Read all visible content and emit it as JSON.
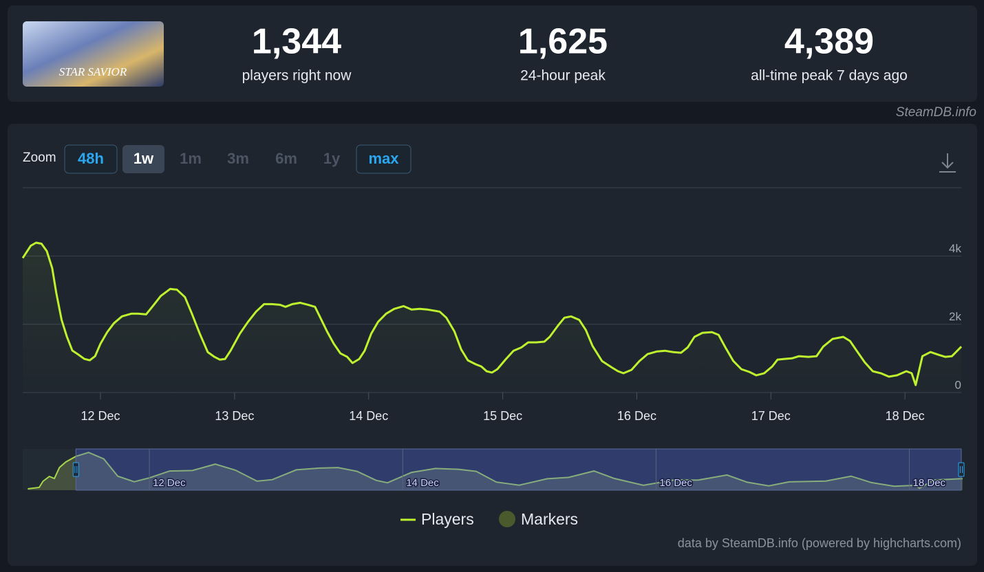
{
  "header": {
    "image_label": "STAR SAVIOR",
    "source": "SteamDB.info",
    "stats": [
      {
        "value": "1,344",
        "label": "players right now"
      },
      {
        "value": "1,625",
        "label": "24-hour peak"
      },
      {
        "value": "4,389",
        "label": "all-time peak 7 days ago"
      }
    ]
  },
  "zoom": {
    "label": "Zoom",
    "buttons": [
      "48h",
      "1w",
      "1m",
      "3m",
      "6m",
      "1y",
      "max"
    ]
  },
  "chart_data": [
    {
      "type": "line",
      "grid": true,
      "legend": "bottom",
      "series": [
        {
          "name": "Players",
          "color": "#bef22e",
          "values": [
            3940,
            4300,
            4389,
            4360,
            4140,
            3640,
            2930,
            2130,
            1630,
            1230,
            1100,
            985,
            945,
            1065,
            1430,
            1770,
            2030,
            2230,
            2310,
            2310,
            2290,
            2530,
            2830,
            3035,
            3015,
            2795,
            2330,
            1730,
            1185,
            1045,
            965,
            985,
            1225,
            1730,
            2070,
            2370,
            2590,
            2590,
            2570,
            2510,
            2590,
            2630,
            2570,
            2510,
            2190,
            1790,
            1430,
            1145,
            1045,
            865,
            985,
            1225,
            1730,
            2070,
            2310,
            2450,
            2530,
            2430,
            2450,
            2430,
            2370,
            2190,
            1790,
            1265,
            945,
            825,
            765,
            625,
            585,
            685,
            965,
            1225,
            1325,
            1470,
            1470,
            1490,
            1630,
            1950,
            2190,
            2230,
            2130,
            1830,
            1365,
            925,
            745,
            625,
            565,
            665,
            925,
            1125,
            1205,
            1225,
            1185,
            1165,
            1325,
            1630,
            1750,
            1770,
            1690,
            1325,
            925,
            685,
            605,
            505,
            565,
            765,
            965,
            985,
            1005,
            1065,
            1045,
            1065,
            1345,
            1570,
            1630,
            1510,
            1225,
            885,
            625,
            565,
            465,
            505,
            625,
            565,
            220,
            1065,
            1185,
            1105,
            1045,
            1065,
            1344
          ]
        }
      ],
      "x": [
        11.42,
        11.48,
        11.52,
        11.56,
        11.6,
        11.64,
        11.67,
        11.71,
        11.75,
        11.79,
        11.84,
        11.88,
        11.92,
        11.96,
        12.0,
        12.05,
        12.1,
        12.16,
        12.23,
        12.28,
        12.34,
        12.39,
        12.45,
        12.52,
        12.57,
        12.63,
        12.68,
        12.74,
        12.8,
        12.85,
        12.89,
        12.93,
        12.97,
        13.04,
        13.1,
        13.16,
        13.22,
        13.28,
        13.34,
        13.38,
        13.43,
        13.49,
        13.55,
        13.6,
        13.64,
        13.69,
        13.74,
        13.79,
        13.84,
        13.88,
        13.93,
        13.97,
        14.02,
        14.07,
        14.13,
        14.19,
        14.26,
        14.32,
        14.38,
        14.44,
        14.53,
        14.58,
        14.64,
        14.69,
        14.74,
        14.8,
        14.84,
        14.88,
        14.92,
        14.96,
        15.02,
        15.08,
        15.14,
        15.19,
        15.25,
        15.31,
        15.35,
        15.41,
        15.46,
        15.51,
        15.57,
        15.62,
        15.67,
        15.74,
        15.81,
        15.86,
        15.9,
        15.96,
        16.02,
        16.08,
        16.15,
        16.21,
        16.27,
        16.33,
        16.38,
        16.43,
        16.49,
        16.56,
        16.61,
        16.66,
        16.72,
        16.78,
        16.84,
        16.89,
        16.95,
        17.01,
        17.05,
        17.1,
        17.16,
        17.21,
        17.28,
        17.34,
        17.39,
        17.46,
        17.54,
        17.59,
        17.64,
        17.7,
        17.76,
        17.82,
        17.88,
        17.94,
        18.01,
        18.05,
        18.08,
        18.13,
        18.19,
        18.25,
        18.3,
        18.35,
        18.42
      ],
      "xlim": [
        11.42,
        18.42
      ],
      "xticks": [
        {
          "value": 12,
          "label": "12 Dec"
        },
        {
          "value": 13,
          "label": "13 Dec"
        },
        {
          "value": 14,
          "label": "14 Dec"
        },
        {
          "value": 15,
          "label": "15 Dec"
        },
        {
          "value": 16,
          "label": "16 Dec"
        },
        {
          "value": 17,
          "label": "17 Dec"
        },
        {
          "value": 18,
          "label": "18 Dec"
        }
      ],
      "ylim": [
        0,
        6000
      ],
      "yticks": [
        0,
        {
          "value": 2000,
          "label": "2k"
        },
        {
          "value": 4000,
          "label": "4k"
        }
      ],
      "markers": {
        "name": "Markers",
        "color": "#4b5a2c"
      },
      "credits": "data by SteamDB.info (powered by highcharts.com)"
    },
    {
      "type": "area",
      "series": [
        {
          "name": "Players",
          "color": "#a6d84a",
          "values": [
            160,
            320,
            1040,
            1600,
            1360,
            2640,
            3280,
            3940,
            4389,
            3640,
            1630,
            985,
            1430,
            2230,
            2290,
            3035,
            2330,
            1045,
            1225,
            2370,
            2570,
            2630,
            2190,
            1145,
            865,
            2070,
            2530,
            2430,
            2190,
            945,
            585,
            1325,
            1490,
            2230,
            1365,
            565,
            1205,
            1165,
            1770,
            925,
            505,
            965,
            1065,
            1630,
            885,
            465,
            565,
            220,
            1185,
            1344
          ]
        }
      ],
      "x": [
        11.04,
        11.13,
        11.16,
        11.21,
        11.25,
        11.29,
        11.34,
        11.42,
        11.52,
        11.64,
        11.75,
        11.88,
        12.0,
        12.16,
        12.34,
        12.52,
        12.68,
        12.85,
        12.97,
        13.16,
        13.34,
        13.49,
        13.64,
        13.79,
        13.88,
        14.07,
        14.26,
        14.44,
        14.58,
        14.74,
        14.92,
        15.14,
        15.31,
        15.51,
        15.67,
        15.9,
        16.15,
        16.33,
        16.56,
        16.72,
        16.89,
        17.05,
        17.34,
        17.54,
        17.7,
        17.88,
        18.05,
        18.08,
        18.19,
        18.42
      ],
      "xlim": [
        11.0,
        18.41
      ],
      "xticks": [
        {
          "value": 12,
          "label": "12 Dec"
        },
        {
          "value": 14,
          "label": "14 Dec"
        },
        {
          "value": 16,
          "label": "16 Dec"
        },
        {
          "value": 18,
          "label": "18 Dec"
        }
      ],
      "ylim": [
        0,
        4800
      ]
    }
  ]
}
